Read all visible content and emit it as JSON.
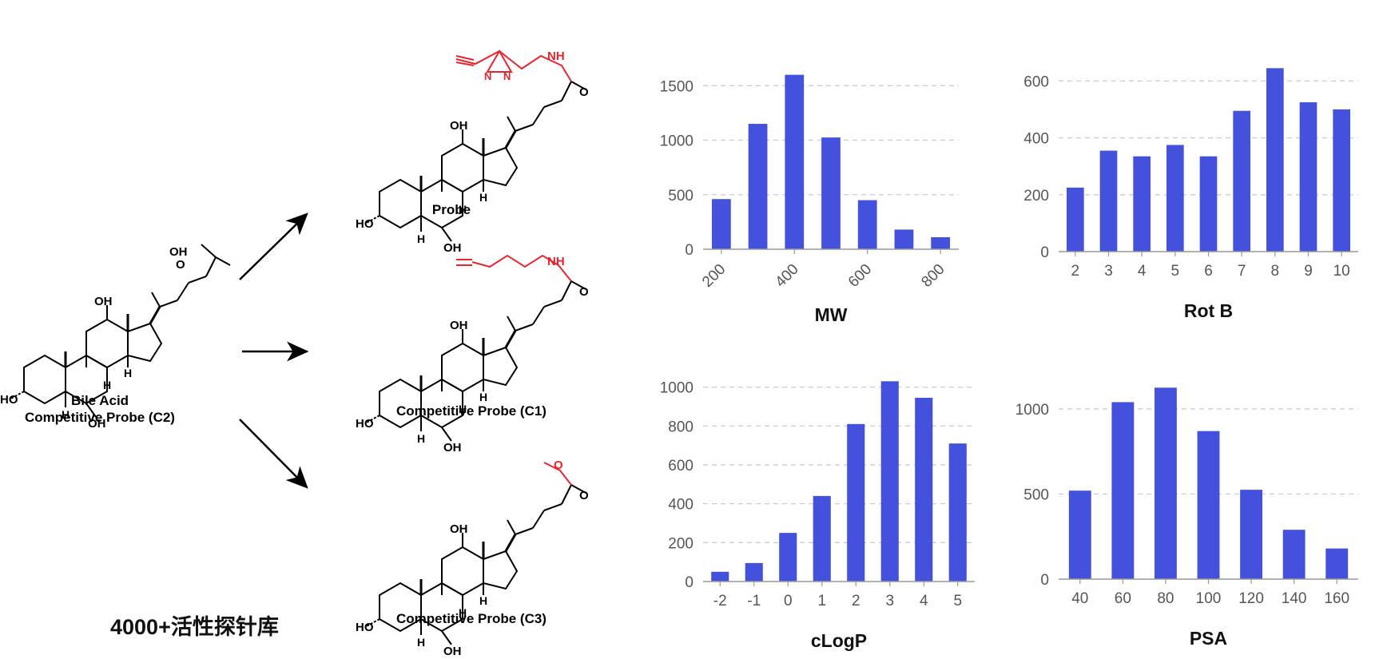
{
  "scheme": {
    "start_label_1": "Bile Acid",
    "start_label_2": "Competitive Probe (C2)",
    "products": [
      {
        "label": "Probe"
      },
      {
        "label": "Competitive Probe (C1)"
      },
      {
        "label": "Competitive Probe (C3)"
      }
    ],
    "atoms": {
      "oh": "OH",
      "ho": "HO",
      "h": "H",
      "nh": "NH",
      "o": "O",
      "n": "N"
    }
  },
  "footer_text": "4000+活性探针库",
  "colors": {
    "bar": "#4351dc",
    "grid": "#cccccc",
    "axis": "#999999",
    "highlight": "#e8242c"
  },
  "chart_data": [
    {
      "type": "bar",
      "title": "MW",
      "x": [
        200,
        300,
        400,
        500,
        600,
        700,
        800
      ],
      "values": [
        460,
        1150,
        1600,
        1025,
        450,
        180,
        110
      ],
      "xticks": [
        "200",
        "400",
        "600",
        "800"
      ],
      "yticks": [
        "0",
        "500",
        "1000",
        "1500"
      ],
      "ylim": [
        0,
        1700
      ],
      "grid": true
    },
    {
      "type": "bar",
      "title": "Rot B",
      "x": [
        2,
        3,
        4,
        5,
        6,
        7,
        8,
        9,
        10
      ],
      "values": [
        225,
        355,
        335,
        375,
        335,
        495,
        645,
        525,
        500
      ],
      "xticks": [
        "2",
        "3",
        "4",
        "5",
        "6",
        "7",
        "8",
        "9",
        "10"
      ],
      "yticks": [
        "0",
        "200",
        "400",
        "600"
      ],
      "ylim": [
        0,
        660
      ],
      "grid": true
    },
    {
      "type": "bar",
      "title": "cLogP",
      "x": [
        -2,
        -1,
        0,
        1,
        2,
        3,
        4,
        5
      ],
      "values": [
        50,
        95,
        250,
        440,
        810,
        1030,
        945,
        710
      ],
      "xticks": [
        "-2",
        "-1",
        "0",
        "1",
        "2",
        "3",
        "4",
        "5"
      ],
      "yticks": [
        "0",
        "200",
        "400",
        "600",
        "800",
        "1000"
      ],
      "ylim": [
        0,
        1060
      ],
      "grid": true
    },
    {
      "type": "bar",
      "title": "PSA",
      "x": [
        40,
        60,
        80,
        100,
        120,
        140,
        160
      ],
      "values": [
        520,
        1040,
        1125,
        870,
        525,
        290,
        180
      ],
      "xticks": [
        "40",
        "60",
        "80",
        "100",
        "120",
        "140",
        "160"
      ],
      "yticks": [
        "0",
        "500",
        "1000"
      ],
      "ylim": [
        0,
        1150
      ],
      "grid": true
    }
  ]
}
